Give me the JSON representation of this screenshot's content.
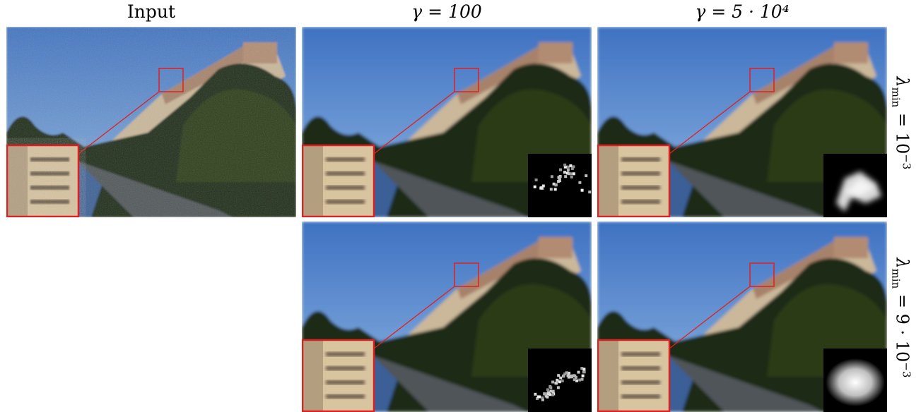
{
  "columns": [
    {
      "title": "Input"
    },
    {
      "title": "γ = 100"
    },
    {
      "title": "γ = 5 · 10⁴"
    }
  ],
  "rows": [
    {
      "label_main": "λ",
      "label_sub": "min",
      "label_rest": " = 10",
      "label_sup": "−3"
    },
    {
      "label_main": "λ",
      "label_sub": "min",
      "label_rest": " = 9 · 10",
      "label_sup": "−3"
    }
  ],
  "colors": {
    "zoom_box": "#e02020",
    "sky": "#5a8fd0",
    "foliage": "#1f2a12",
    "building": "#cbb89a"
  },
  "panels": [
    {
      "id": "input",
      "noisy": true,
      "kernel": "none"
    },
    {
      "id": "r1c2",
      "noisy": false,
      "kernel": "sparse-dots"
    },
    {
      "id": "r1c3",
      "noisy": false,
      "kernel": "blob-irregular"
    },
    {
      "id": "r2c2",
      "noisy": false,
      "kernel": "sparse-streak"
    },
    {
      "id": "r2c3",
      "noisy": false,
      "kernel": "smooth-blob"
    }
  ]
}
